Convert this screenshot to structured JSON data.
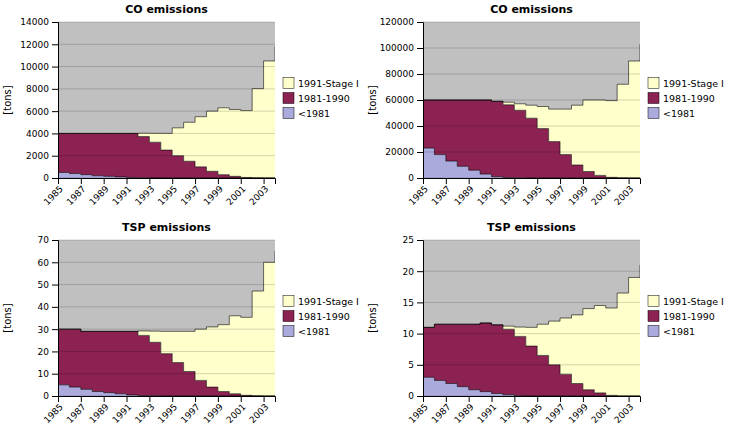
{
  "chart_data": [
    {
      "type": "area",
      "title": "CO emissions",
      "ylabel": "[tons]",
      "stacked": true,
      "line_style": "step",
      "grid": "y",
      "legend": "right",
      "x": [
        1985,
        1986,
        1987,
        1988,
        1989,
        1990,
        1991,
        1992,
        1993,
        1994,
        1995,
        1996,
        1997,
        1998,
        1999,
        2000,
        2001,
        2002,
        2003,
        2004
      ],
      "xlim": [
        1985,
        2004
      ],
      "xticks": [
        1985,
        1987,
        1989,
        1991,
        1993,
        1995,
        1997,
        1999,
        2001,
        2003
      ],
      "ylim": [
        0,
        14000
      ],
      "yticks": [
        0,
        2000,
        4000,
        6000,
        8000,
        10000,
        12000,
        14000
      ],
      "series": [
        {
          "name": "<1981",
          "color": "#aaaadd",
          "values": [
            500,
            400,
            300,
            200,
            150,
            100,
            50,
            20,
            10,
            5,
            2,
            1,
            0,
            0,
            0,
            0,
            0,
            0,
            0,
            0
          ]
        },
        {
          "name": "1981-1990",
          "color": "#8b2252",
          "values": [
            3500,
            3600,
            3700,
            3800,
            3850,
            3900,
            3950,
            3700,
            3200,
            2500,
            2000,
            1500,
            1000,
            600,
            300,
            150,
            50,
            20,
            5,
            0
          ]
        },
        {
          "name": "1991-Stage I",
          "color": "#ffffcc",
          "values": [
            0,
            0,
            0,
            0,
            0,
            0,
            0,
            300,
            800,
            1500,
            2500,
            3500,
            4500,
            5400,
            6000,
            6000,
            6000,
            8000,
            10500,
            11800
          ]
        }
      ],
      "total": {
        "color": "#c0c0c0",
        "values": [
          14000,
          14000,
          14000,
          14000,
          14000,
          14000,
          14000,
          14000,
          14000,
          14000,
          14000,
          14000,
          14000,
          14000,
          14000,
          14000,
          14000,
          14000,
          14000,
          14000
        ]
      }
    },
    {
      "type": "area",
      "title": "CO emissions",
      "ylabel": "[tons]",
      "stacked": true,
      "line_style": "step",
      "grid": "y",
      "legend": "right",
      "x": [
        1985,
        1986,
        1987,
        1988,
        1989,
        1990,
        1991,
        1992,
        1993,
        1994,
        1995,
        1996,
        1997,
        1998,
        1999,
        2000,
        2001,
        2002,
        2003,
        2004
      ],
      "xlim": [
        1985,
        2004
      ],
      "xticks": [
        1985,
        1987,
        1989,
        1991,
        1993,
        1995,
        1997,
        1999,
        2001,
        2003
      ],
      "ylim": [
        0,
        120000
      ],
      "yticks": [
        0,
        20000,
        40000,
        60000,
        80000,
        100000,
        120000
      ],
      "series": [
        {
          "name": "<1981",
          "color": "#aaaadd",
          "values": [
            23000,
            18000,
            13000,
            9000,
            6000,
            3000,
            1000,
            300,
            100,
            0,
            0,
            0,
            0,
            0,
            0,
            0,
            0,
            0,
            0,
            0
          ]
        },
        {
          "name": "1981-1990",
          "color": "#8b2252",
          "values": [
            37000,
            42000,
            47000,
            51000,
            54000,
            57000,
            58000,
            56000,
            52000,
            46000,
            38000,
            28000,
            18000,
            10000,
            5000,
            2000,
            500,
            100,
            0,
            0
          ]
        },
        {
          "name": "1991-Stage I",
          "color": "#ffffcc",
          "values": [
            0,
            0,
            0,
            0,
            0,
            0,
            0,
            2000,
            5000,
            10000,
            17000,
            25000,
            35000,
            46000,
            55000,
            58000,
            59000,
            72000,
            90000,
            103000
          ]
        }
      ],
      "total": {
        "color": "#c0c0c0",
        "values": [
          120000,
          120000,
          120000,
          120000,
          120000,
          120000,
          120000,
          120000,
          120000,
          120000,
          120000,
          120000,
          120000,
          120000,
          120000,
          120000,
          120000,
          120000,
          120000,
          120000
        ]
      }
    },
    {
      "type": "area",
      "title": "TSP emissions",
      "ylabel": "[tons]",
      "stacked": true,
      "line_style": "step",
      "grid": "y",
      "legend": "right",
      "x": [
        1985,
        1986,
        1987,
        1988,
        1989,
        1990,
        1991,
        1992,
        1993,
        1994,
        1995,
        1996,
        1997,
        1998,
        1999,
        2000,
        2001,
        2002,
        2003,
        2004
      ],
      "xlim": [
        1985,
        2004
      ],
      "xticks": [
        1985,
        1987,
        1989,
        1991,
        1993,
        1995,
        1997,
        1999,
        2001,
        2003
      ],
      "ylim": [
        0,
        70
      ],
      "yticks": [
        0,
        10,
        20,
        30,
        40,
        50,
        60,
        70
      ],
      "series": [
        {
          "name": "<1981",
          "color": "#aaaadd",
          "values": [
            5,
            4,
            3,
            2,
            1.5,
            1,
            0.5,
            0.2,
            0.1,
            0,
            0,
            0,
            0,
            0,
            0,
            0,
            0,
            0,
            0,
            0
          ]
        },
        {
          "name": "1981-1990",
          "color": "#8b2252",
          "values": [
            25,
            26,
            26,
            27,
            27.5,
            28,
            28.5,
            27,
            24,
            19,
            15,
            11,
            7,
            4,
            2,
            1,
            0.3,
            0.1,
            0,
            0
          ]
        },
        {
          "name": "1991-Stage I",
          "color": "#ffffcc",
          "values": [
            0,
            0,
            0,
            0,
            0,
            0,
            0,
            2,
            5,
            10,
            14,
            18,
            23,
            27,
            30,
            35,
            35,
            47,
            60,
            65
          ]
        }
      ],
      "total": {
        "color": "#c0c0c0",
        "values": [
          70,
          70,
          70,
          70,
          70,
          70,
          70,
          70,
          70,
          70,
          70,
          70,
          70,
          70,
          70,
          70,
          70,
          70,
          70,
          70
        ]
      }
    },
    {
      "type": "area",
      "title": "TSP emissions",
      "ylabel": "[tons]",
      "stacked": true,
      "line_style": "step",
      "grid": "y",
      "legend": "right",
      "x": [
        1985,
        1986,
        1987,
        1988,
        1989,
        1990,
        1991,
        1992,
        1993,
        1994,
        1995,
        1996,
        1997,
        1998,
        1999,
        2000,
        2001,
        2002,
        2003,
        2004
      ],
      "xlim": [
        1985,
        2004
      ],
      "xticks": [
        1985,
        1987,
        1989,
        1991,
        1993,
        1995,
        1997,
        1999,
        2001,
        2003
      ],
      "ylim": [
        0,
        25
      ],
      "yticks": [
        0,
        5,
        10,
        15,
        20,
        25
      ],
      "series": [
        {
          "name": "<1981",
          "color": "#aaaadd",
          "values": [
            3,
            2.5,
            2,
            1.5,
            1,
            0.7,
            0.4,
            0.2,
            0.05,
            0,
            0,
            0,
            0,
            0,
            0,
            0,
            0,
            0,
            0,
            0
          ]
        },
        {
          "name": "1981-1990",
          "color": "#8b2252",
          "values": [
            8,
            9,
            9.5,
            10,
            10.5,
            11,
            11,
            10.5,
            9.5,
            8,
            6.5,
            5,
            3.5,
            2,
            1,
            0.5,
            0.1,
            0,
            0,
            0
          ]
        },
        {
          "name": "1991-Stage I",
          "color": "#ffffcc",
          "values": [
            0,
            0,
            0,
            0,
            0,
            0,
            0,
            0.5,
            1.5,
            3,
            5,
            7,
            9,
            11,
            13,
            14,
            14,
            16.5,
            19,
            21
          ]
        }
      ],
      "total": {
        "color": "#c0c0c0",
        "values": [
          25,
          25,
          25,
          25,
          25,
          25,
          25,
          25,
          25,
          25,
          25,
          25,
          25,
          25,
          25,
          25,
          25,
          25,
          25,
          25
        ]
      }
    }
  ]
}
